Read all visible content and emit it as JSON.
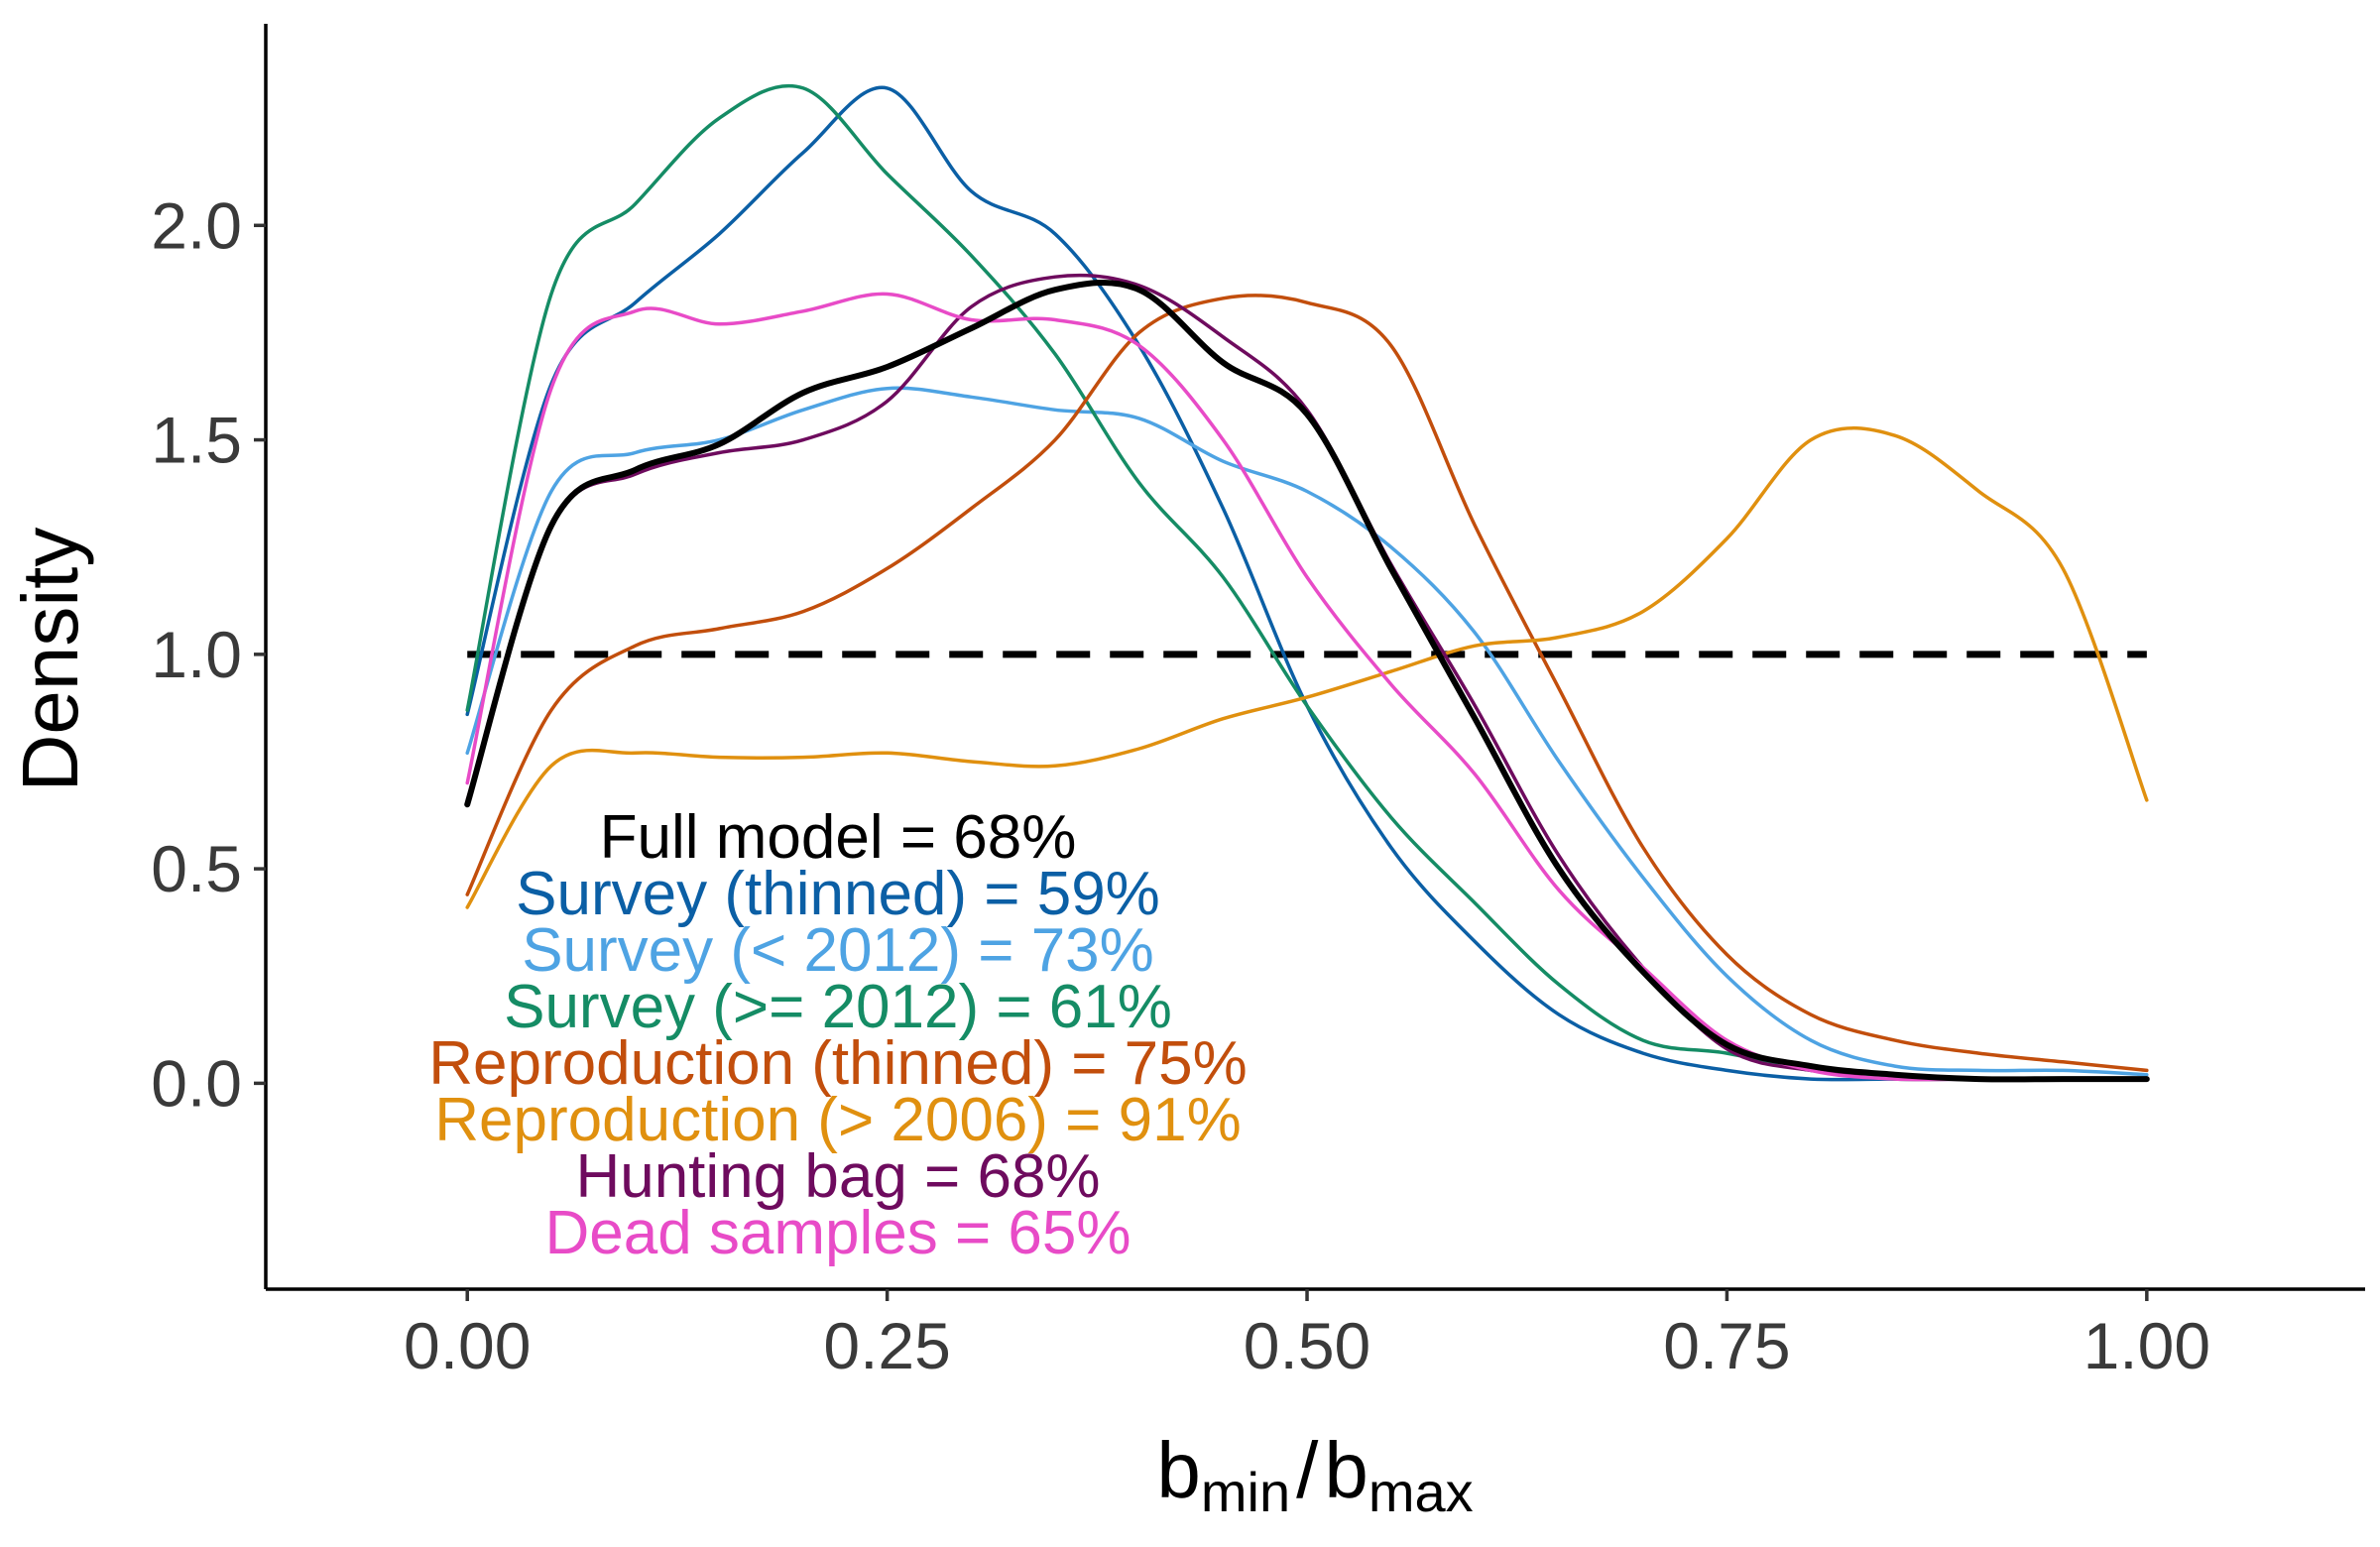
{
  "chart_data": {
    "type": "line",
    "title": "",
    "xlabel": {
      "base_left": "b",
      "sub_left": "min",
      "separator": "/",
      "base_right": "b",
      "sub_right": "max"
    },
    "ylabel": "Density",
    "xlim": [
      -0.12,
      1.13
    ],
    "ylim": [
      -0.48,
      2.47
    ],
    "x_ticks": [
      {
        "value": 0.0,
        "label": "0.00"
      },
      {
        "value": 0.25,
        "label": "0.25"
      },
      {
        "value": 0.5,
        "label": "0.50"
      },
      {
        "value": 0.75,
        "label": "0.75"
      },
      {
        "value": 1.0,
        "label": "1.00"
      }
    ],
    "y_ticks": [
      {
        "value": 0.0,
        "label": "0.0"
      },
      {
        "value": 0.5,
        "label": "0.5"
      },
      {
        "value": 1.0,
        "label": "1.0"
      },
      {
        "value": 1.5,
        "label": "1.5"
      },
      {
        "value": 2.0,
        "label": "2.0"
      }
    ],
    "grid": false,
    "reference_line": {
      "y": 1.0,
      "x_range": [
        0,
        1
      ],
      "style": "dashed",
      "color": "#000000"
    },
    "x": [
      0.0,
      0.05,
      0.1,
      0.15,
      0.2,
      0.25,
      0.3,
      0.35,
      0.4,
      0.45,
      0.5,
      0.55,
      0.6,
      0.65,
      0.7,
      0.75,
      0.8,
      0.85,
      0.9,
      0.95,
      1.0
    ],
    "series": [
      {
        "color": "#0B5FA5",
        "width": 3.5,
        "values": [
          0.86,
          1.63,
          1.82,
          1.98,
          2.17,
          2.32,
          2.08,
          1.98,
          1.72,
          1.34,
          0.88,
          0.55,
          0.33,
          0.16,
          0.07,
          0.03,
          0.01,
          0.01,
          0.01,
          0.01,
          0.01
        ]
      },
      {
        "color": "#4EA3E3",
        "width": 3.5,
        "values": [
          0.77,
          1.38,
          1.47,
          1.5,
          1.57,
          1.62,
          1.6,
          1.57,
          1.55,
          1.45,
          1.38,
          1.25,
          1.05,
          0.75,
          0.48,
          0.25,
          0.1,
          0.04,
          0.03,
          0.03,
          0.02
        ]
      },
      {
        "color": "#158C65",
        "width": 3.5,
        "values": [
          0.87,
          1.84,
          2.05,
          2.25,
          2.32,
          2.12,
          1.93,
          1.7,
          1.4,
          1.18,
          0.88,
          0.62,
          0.42,
          0.23,
          0.1,
          0.07,
          0.03,
          0.01,
          0.01,
          0.01,
          0.01
        ]
      },
      {
        "color": "#C24E0C",
        "width": 3.5,
        "values": [
          0.44,
          0.87,
          1.02,
          1.06,
          1.1,
          1.2,
          1.34,
          1.5,
          1.75,
          1.83,
          1.82,
          1.72,
          1.3,
          0.92,
          0.55,
          0.3,
          0.16,
          0.1,
          0.07,
          0.05,
          0.03
        ]
      },
      {
        "color": "#E0900F",
        "width": 3.5,
        "values": [
          0.41,
          0.74,
          0.77,
          0.76,
          0.76,
          0.77,
          0.75,
          0.74,
          0.78,
          0.85,
          0.9,
          0.96,
          1.02,
          1.04,
          1.1,
          1.27,
          1.5,
          1.51,
          1.38,
          1.2,
          0.66
        ]
      },
      {
        "color": "#6E0B5E",
        "width": 3.5,
        "values": [
          0.66,
          1.3,
          1.42,
          1.47,
          1.5,
          1.59,
          1.81,
          1.88,
          1.86,
          1.74,
          1.57,
          1.21,
          0.88,
          0.53,
          0.27,
          0.08,
          0.03,
          0.02,
          0.01,
          0.01,
          0.01
        ]
      },
      {
        "color": "#E84BC7",
        "width": 3.5,
        "values": [
          0.7,
          1.62,
          1.8,
          1.77,
          1.8,
          1.84,
          1.78,
          1.78,
          1.72,
          1.5,
          1.18,
          0.93,
          0.72,
          0.45,
          0.27,
          0.1,
          0.03,
          0.01,
          0.01,
          0.01,
          0.01
        ]
      },
      {
        "color": "#000000",
        "width": 6,
        "values": [
          0.65,
          1.3,
          1.43,
          1.49,
          1.61,
          1.67,
          1.76,
          1.85,
          1.85,
          1.68,
          1.56,
          1.2,
          0.85,
          0.5,
          0.26,
          0.09,
          0.04,
          0.02,
          0.01,
          0.01,
          0.01
        ]
      }
    ],
    "annotations": [
      {
        "text": "Full model = 68%",
        "color": "#000000"
      },
      {
        "text": "Survey (thinned) = 59%",
        "color": "#0B5FA5"
      },
      {
        "text": "Survey (< 2012) = 73%",
        "color": "#4EA3E3"
      },
      {
        "text": "Survey (>= 2012) = 61%",
        "color": "#158C65"
      },
      {
        "text": "Reproduction (thinned) = 75%",
        "color": "#C24E0C"
      },
      {
        "text": "Reproduction (> 2006) = 91%",
        "color": "#E0900F"
      },
      {
        "text": "Hunting bag = 68%",
        "color": "#6E0B5E"
      },
      {
        "text": "Dead samples = 65%",
        "color": "#E84BC7"
      }
    ]
  }
}
